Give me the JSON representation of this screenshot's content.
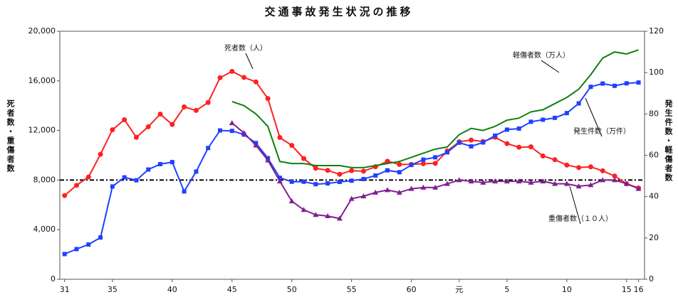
{
  "chart_data": {
    "type": "line",
    "title": "交通事故発生状況の推移",
    "y_label": "死者数・重傷者数",
    "y2_label": "発生件数・軽傷者数",
    "x": [
      1956,
      1957,
      1958,
      1959,
      1960,
      1961,
      1962,
      1963,
      1964,
      1965,
      1966,
      1967,
      1968,
      1969,
      1970,
      1971,
      1972,
      1973,
      1974,
      1975,
      1976,
      1977,
      1978,
      1979,
      1980,
      1981,
      1982,
      1983,
      1984,
      1985,
      1986,
      1987,
      1988,
      1989,
      1990,
      1991,
      1992,
      1993,
      1994,
      1995,
      1996,
      1997,
      1998,
      1999,
      2000,
      2001,
      2002,
      2003,
      2004
    ],
    "xlim": [
      1955.6,
      2004.5
    ],
    "xticks": [
      {
        "value": 1956,
        "label": "31"
      },
      {
        "value": 1960,
        "label": "35"
      },
      {
        "value": 1965,
        "label": "40"
      },
      {
        "value": 1970,
        "label": "45"
      },
      {
        "value": 1975,
        "label": "50"
      },
      {
        "value": 1980,
        "label": "55"
      },
      {
        "value": 1985,
        "label": "60"
      },
      {
        "value": 1989,
        "label": "元"
      },
      {
        "value": 1993,
        "label": "5"
      },
      {
        "value": 1998,
        "label": "10"
      },
      {
        "value": 2003,
        "label": "15"
      },
      {
        "value": 2004,
        "label": "16"
      }
    ],
    "ylim": [
      0,
      20000
    ],
    "yticks": [
      0,
      {
        "value": 4000,
        "label": "4,000"
      },
      {
        "value": 8000,
        "label": "8,000"
      },
      {
        "value": 12000,
        "label": "12,000"
      },
      {
        "value": 16000,
        "label": "16,000"
      },
      {
        "value": 20000,
        "label": "20,000"
      }
    ],
    "y2lim": [
      0,
      120
    ],
    "y2ticks": [
      0,
      20,
      40,
      60,
      80,
      100,
      120
    ],
    "reference_line": 8000,
    "series": [
      {
        "name": "死者数（人）",
        "color": "#ff2020",
        "marker": "circle",
        "values": [
          6751,
          7575,
          8248,
          10079,
          12055,
          12865,
          11445,
          12301,
          13318,
          12484,
          13904,
          13618,
          14256,
          16257,
          16765,
          16278,
          15918,
          14574,
          11432,
          10792,
          9734,
          8945,
          8783,
          8466,
          8760,
          8719,
          9073,
          9520,
          9262,
          9261,
          9317,
          9347,
          10344,
          11086,
          11227,
          11109,
          11452,
          10942,
          10649,
          10679,
          9942,
          9640,
          9211,
          9006,
          9066,
          8747,
          8326,
          7702,
          7358
        ]
      },
      {
        "name": "発生件数（万件）",
        "color": "#2040ff",
        "marker": "square",
        "axis": "y2",
        "values": [
          12.2,
          14.6,
          16.8,
          20.2,
          44.9,
          49.3,
          47.9,
          53.1,
          55.7,
          56.7,
          42.5,
          52.1,
          63.5,
          72.0,
          71.8,
          70.0,
          65.9,
          58.6,
          49.1,
          47.2,
          47.2,
          46.0,
          46.4,
          47.1,
          47.7,
          48.5,
          50.2,
          52.7,
          51.8,
          55.3,
          57.9,
          59.0,
          61.4,
          66.1,
          64.3,
          66.2,
          69.5,
          72.4,
          72.9,
          76.2,
          77.2,
          78.1,
          80.4,
          85.1,
          93.1,
          94.7,
          93.6,
          94.8,
          95.2
        ]
      },
      {
        "name": "軽傷者数（万人）",
        "color": "#108010",
        "marker": "none",
        "axis": "y2",
        "values": [
          null,
          null,
          null,
          null,
          null,
          null,
          null,
          null,
          null,
          null,
          null,
          null,
          null,
          null,
          86,
          84,
          80,
          74,
          57,
          56,
          56,
          55,
          55,
          55,
          54,
          54,
          55,
          56,
          57,
          59,
          61,
          63,
          64,
          70,
          73,
          72,
          74,
          77,
          78,
          81,
          82,
          85,
          88,
          92,
          99,
          107,
          110,
          109,
          111
        ]
      },
      {
        "name": "重傷者数（１０人）",
        "color": "#802090",
        "marker": "triangle",
        "values": [
          null,
          null,
          null,
          null,
          null,
          null,
          null,
          null,
          null,
          null,
          null,
          null,
          null,
          null,
          12600,
          11800,
          10800,
          9600,
          7900,
          6300,
          5600,
          5200,
          5100,
          4900,
          6500,
          6700,
          7000,
          7200,
          7000,
          7300,
          7400,
          7400,
          7700,
          8000,
          7900,
          7800,
          7900,
          7900,
          7900,
          7800,
          7900,
          7700,
          7700,
          7500,
          7600,
          8000,
          8000,
          7700,
          7300
        ]
      }
    ]
  }
}
